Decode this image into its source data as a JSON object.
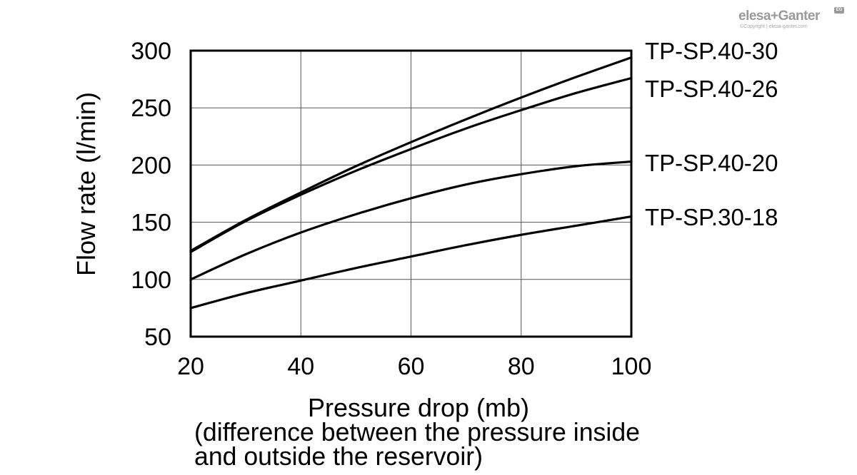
{
  "logo": {
    "brand": "elesa+Ganter",
    "copyright": "©Copyright | elesa-ganter.com",
    "mark": "EG"
  },
  "chart_data": {
    "type": "line",
    "xlabel": "Pressure drop (mb)",
    "xlabel_note_1": "(difference between the pressure inside",
    "xlabel_note_2": "and outside the reservoir)",
    "ylabel": "Flow rate (l/min)",
    "xlim": [
      20,
      100
    ],
    "ylim": [
      50,
      300
    ],
    "xticks": [
      20,
      40,
      60,
      80,
      100
    ],
    "yticks": [
      50,
      100,
      150,
      200,
      250,
      300
    ],
    "grid": true,
    "legend": "end-labels-right",
    "series": [
      {
        "name": "TP-SP.40-30",
        "x": [
          20,
          30,
          40,
          50,
          60,
          70,
          80,
          90,
          100
        ],
        "y": [
          125,
          152,
          176,
          199,
          220,
          240,
          259,
          277,
          294
        ]
      },
      {
        "name": "TP-SP.40-26",
        "x": [
          20,
          30,
          40,
          50,
          60,
          70,
          80,
          90,
          100
        ],
        "y": [
          124,
          151,
          174,
          195,
          214,
          232,
          248,
          263,
          276
        ]
      },
      {
        "name": "TP-SP.40-20",
        "x": [
          20,
          30,
          40,
          50,
          60,
          70,
          80,
          90,
          100
        ],
        "y": [
          100,
          122,
          141,
          157,
          171,
          183,
          192,
          199,
          203
        ]
      },
      {
        "name": "TP-SP.30-18",
        "x": [
          20,
          30,
          40,
          50,
          60,
          70,
          80,
          90,
          100
        ],
        "y": [
          75,
          88,
          99,
          110,
          120,
          130,
          139,
          147,
          155
        ]
      }
    ]
  }
}
